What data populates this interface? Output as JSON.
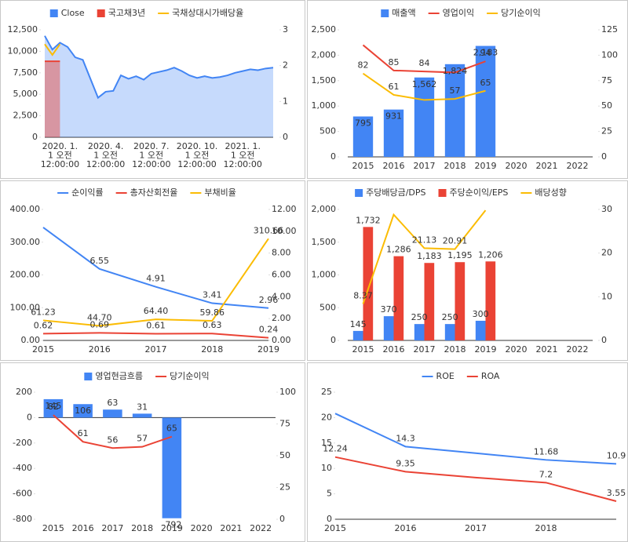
{
  "chart_data": [
    {
      "type": "combo",
      "categories": [
        null,
        null,
        "2020. 1.\n1 오전\n12:00:00",
        null,
        null,
        null,
        null,
        null,
        "2020. 4.\n1 오전\n12:00:00",
        null,
        null,
        null,
        null,
        null,
        "2020. 7.\n1 오전\n12:00:00",
        null,
        null,
        null,
        null,
        null,
        "2020. 10.\n1 오전\n12:00:00",
        null,
        null,
        null,
        null,
        null,
        "2021. 1.\n1 오전\n12:00:00",
        null,
        null,
        null,
        null
      ],
      "series": [
        {
          "name": "Close",
          "kind": "area",
          "color": "#4285f4",
          "values": [
            11800,
            10200,
            11000,
            10500,
            9300,
            9000,
            6800,
            4600,
            5300,
            5400,
            7200,
            6800,
            7100,
            6700,
            7400,
            7600,
            7800,
            8100,
            7700,
            7200,
            6900,
            7100,
            6900,
            7000,
            7200,
            7500,
            7700,
            7900,
            7800,
            8000,
            8100
          ]
        },
        {
          "name": "국고채3년",
          "kind": "area",
          "axis": "y2",
          "color": "#ea4335",
          "values": [
            2.12,
            2.12,
            2.12,
            null,
            null,
            null,
            null,
            null,
            null,
            null,
            null,
            null,
            null,
            null,
            null,
            null,
            null,
            null,
            null,
            null,
            null,
            null,
            null,
            null,
            null,
            null,
            null,
            null,
            null,
            null,
            null
          ]
        },
        {
          "name": "국채상대시가배당율",
          "kind": "line",
          "axis": "y2",
          "color": "#fbbc04",
          "values": [
            2.6,
            2.3,
            2.6,
            null,
            null,
            null,
            null,
            null,
            null,
            null,
            null,
            null,
            null,
            null,
            null,
            null,
            null,
            null,
            null,
            null,
            null,
            null,
            null,
            null,
            null,
            null,
            null,
            null,
            null,
            null,
            null
          ]
        }
      ],
      "ylim": [
        0,
        12500
      ],
      "yticks": [
        0,
        {
          "value": 2500,
          "label": "2,500"
        },
        {
          "value": 5000,
          "label": "5,000"
        },
        {
          "value": 7500,
          "label": "7,500"
        },
        {
          "value": 10000,
          "label": "10,000"
        },
        {
          "value": 12500,
          "label": "12,500"
        }
      ],
      "y2lim": [
        0,
        3
      ],
      "y2ticks": [
        0,
        1,
        2,
        3
      ],
      "grid": false
    },
    {
      "type": "combo",
      "categories": [
        "2015",
        "2016",
        "2017",
        "2018",
        "2019",
        "2020",
        "2021",
        "2022"
      ],
      "series": [
        {
          "name": "매출액",
          "kind": "bar",
          "color": "#4285f4",
          "values": [
            795,
            931,
            1562,
            1824,
            2183,
            null,
            null,
            null
          ],
          "value_labels": [
            "795",
            "931",
            "1,562",
            "1,824",
            "2,183",
            null,
            null,
            null
          ]
        },
        {
          "name": "영업이익",
          "kind": "line",
          "axis": "y2",
          "color": "#ea4335",
          "values": [
            110,
            85,
            84,
            83,
            94,
            null,
            null,
            null
          ],
          "value_labels": [
            null,
            "85",
            "84",
            null,
            "94",
            null,
            null,
            null
          ]
        },
        {
          "name": "당기순이익",
          "kind": "line",
          "axis": "y2",
          "color": "#fbbc04",
          "values": [
            82,
            61,
            56,
            57,
            65,
            null,
            null,
            null
          ],
          "value_labels": [
            "82",
            "61",
            null,
            "57",
            "65",
            null,
            null,
            null
          ]
        }
      ],
      "ylim": [
        0,
        2500
      ],
      "yticks": [
        0,
        500,
        {
          "value": 1000,
          "label": "1,000"
        },
        {
          "value": 1500,
          "label": "1,500"
        },
        {
          "value": 2000,
          "label": "2,000"
        },
        {
          "value": 2500,
          "label": "2,500"
        }
      ],
      "y2lim": [
        0,
        125
      ],
      "y2ticks": [
        0,
        25,
        50,
        75,
        100,
        125
      ],
      "grid": false
    },
    {
      "type": "combo",
      "categories": [
        "2015",
        "2016",
        "2017",
        "2018",
        "2019"
      ],
      "series": [
        {
          "name": "순이익률",
          "kind": "line",
          "axis": "y2",
          "color": "#4285f4",
          "values": [
            10.35,
            6.55,
            4.91,
            3.41,
            2.96
          ],
          "value_labels": [
            null,
            "6.55",
            "4.91",
            "3.41",
            "2.96"
          ]
        },
        {
          "name": "총자산회전율",
          "kind": "line",
          "axis": "y2",
          "color": "#ea4335",
          "values": [
            0.62,
            0.69,
            0.61,
            0.63,
            0.24
          ],
          "value_labels": [
            "0.62",
            "0.69",
            "0.61",
            "0.63",
            "0.24"
          ]
        },
        {
          "name": "부채비율",
          "kind": "line",
          "color": "#fbbc04",
          "values": [
            61.23,
            44.7,
            64.4,
            59.86,
            310.66
          ],
          "value_labels": [
            "61.23",
            "44.70",
            "64.40",
            "59.86",
            "310.66"
          ]
        }
      ],
      "ylim": [
        0,
        400
      ],
      "yticks": [
        {
          "value": 0,
          "label": "0.00"
        },
        {
          "value": 100,
          "label": "100.00"
        },
        {
          "value": 200,
          "label": "200.00"
        },
        {
          "value": 300,
          "label": "300.00"
        },
        {
          "value": 400,
          "label": "400.00"
        }
      ],
      "y2lim": [
        0,
        12
      ],
      "y2ticks": [
        {
          "value": 0,
          "label": "0.00"
        },
        {
          "value": 2,
          "label": "2.00"
        },
        {
          "value": 4,
          "label": "4.00"
        },
        {
          "value": 6,
          "label": "6.00"
        },
        {
          "value": 8,
          "label": "8.00"
        },
        {
          "value": 10,
          "label": "10.00"
        },
        {
          "value": 12,
          "label": "12.00"
        }
      ],
      "grid": false
    },
    {
      "type": "combo",
      "categories": [
        "2015",
        "2016",
        "2017",
        "2018",
        "2019",
        "2020",
        "2021",
        "2022"
      ],
      "series": [
        {
          "name": "주당배당금/DPS",
          "kind": "bar",
          "color": "#4285f4",
          "values": [
            145,
            370,
            250,
            250,
            300,
            null,
            null,
            null
          ],
          "value_labels": [
            "145",
            "370",
            "250",
            "250",
            "300",
            null,
            null,
            null
          ]
        },
        {
          "name": "주당순이익/EPS",
          "kind": "bar",
          "color": "#ea4335",
          "values": [
            1732,
            1286,
            1183,
            1195,
            1206,
            null,
            null,
            null
          ],
          "value_labels": [
            "1,732",
            "1,286",
            "1,183",
            "1,195",
            "1,206",
            null,
            null,
            null
          ]
        },
        {
          "name": "배당성향",
          "kind": "line",
          "axis": "y2",
          "color": "#fbbc04",
          "values": [
            8.37,
            28.8,
            21.13,
            20.91,
            29.8,
            null,
            null,
            null
          ],
          "value_labels": [
            "8.37",
            null,
            "21.13",
            "20.91",
            null,
            null,
            null,
            null
          ]
        }
      ],
      "ylim": [
        0,
        2000
      ],
      "yticks": [
        0,
        500,
        {
          "value": 1000,
          "label": "1,000"
        },
        {
          "value": 1500,
          "label": "1,500"
        },
        {
          "value": 2000,
          "label": "2,000"
        }
      ],
      "y2lim": [
        0,
        30
      ],
      "y2ticks": [
        0,
        10,
        20,
        30
      ],
      "grid": false
    },
    {
      "type": "combo",
      "categories": [
        "2015",
        "2016",
        "2017",
        "2018",
        "2019",
        "2020",
        "2021",
        "2022"
      ],
      "series": [
        {
          "name": "영업현금흐름",
          "kind": "bar",
          "color": "#4285f4",
          "values": [
            145,
            106,
            63,
            31,
            -792,
            null,
            null,
            null
          ]
        },
        {
          "name": "당기순이익",
          "kind": "line",
          "axis": "y2",
          "color": "#ea4335",
          "values": [
            82,
            61,
            56,
            57,
            65,
            null,
            null,
            null
          ]
        }
      ],
      "ylim": [
        -800,
        200
      ],
      "yticks": [
        -800,
        -600,
        -400,
        -200,
        0,
        200
      ],
      "y2lim": [
        0,
        100
      ],
      "y2ticks": [
        0,
        25,
        50,
        75,
        100
      ],
      "grid": false
    },
    {
      "type": "combo",
      "categories": [
        "2015",
        "2016",
        "2017",
        "2018",
        null
      ],
      "series": [
        {
          "name": "ROE",
          "kind": "line",
          "color": "#4285f4",
          "values": [
            20.8,
            14.3,
            13.0,
            11.68,
            10.9
          ],
          "value_labels": [
            null,
            "14.3",
            null,
            "11.68",
            "10.9"
          ]
        },
        {
          "name": "ROA",
          "kind": "line",
          "color": "#ea4335",
          "values": [
            12.24,
            9.35,
            8.2,
            7.2,
            3.55
          ],
          "value_labels": [
            "12.24",
            "9.35",
            null,
            "7.2",
            "3.55"
          ]
        }
      ],
      "ylim": [
        0,
        25
      ],
      "yticks": [
        0,
        5,
        10,
        15,
        20,
        25
      ],
      "grid": false
    }
  ]
}
